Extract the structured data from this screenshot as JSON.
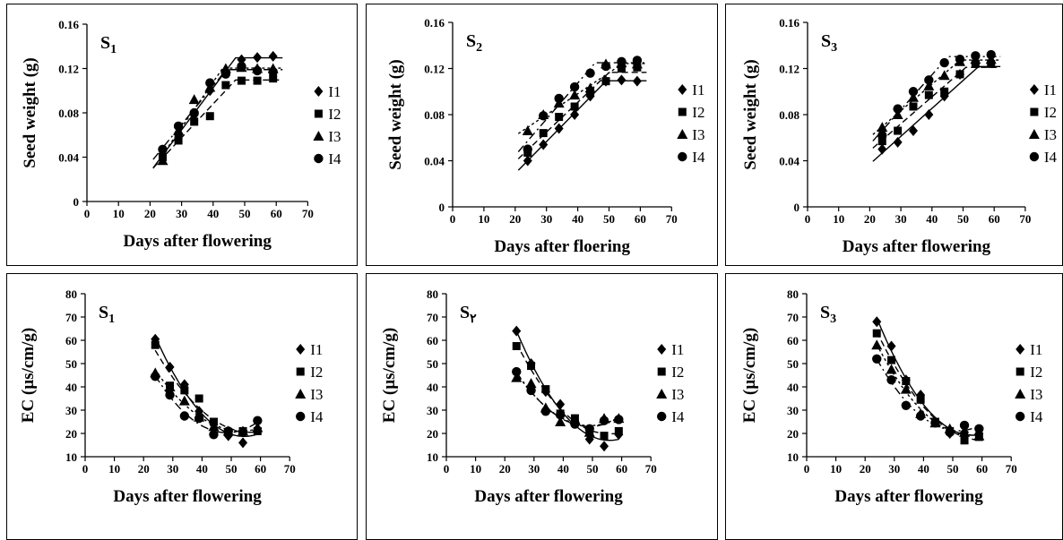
{
  "legend_labels": [
    "I1",
    "I2",
    "I3",
    "I4"
  ],
  "chart_data": [
    {
      "type": "scatter",
      "panel_label": {
        "main": "S",
        "sub": "1"
      },
      "xlabel": "Days after flowering",
      "ylabel": "Seed weight (g)",
      "xlim": [
        0,
        70
      ],
      "ylim": [
        0,
        0.16
      ],
      "xticks": [
        "0",
        "10",
        "20",
        "30",
        "40",
        "50",
        "60",
        "70"
      ],
      "yticks": [
        "0",
        "0.04",
        "0.08",
        "0.12",
        "0.16"
      ],
      "x": [
        24,
        29,
        34,
        39,
        44,
        49,
        54,
        59
      ],
      "series": [
        {
          "name": "I1",
          "marker": "diamond",
          "values": [
            0.043,
            0.06,
            0.078,
            0.1,
            0.118,
            0.128,
            0.13,
            0.131
          ]
        },
        {
          "name": "I2",
          "marker": "square",
          "values": [
            0.04,
            0.055,
            0.072,
            0.077,
            0.105,
            0.109,
            0.109,
            0.111
          ]
        },
        {
          "name": "I3",
          "marker": "triangle",
          "values": [
            0.037,
            0.064,
            0.092,
            0.103,
            0.12,
            0.121,
            0.12,
            0.12
          ]
        },
        {
          "name": "I4",
          "marker": "circle",
          "values": [
            0.047,
            0.068,
            0.08,
            0.107,
            0.115,
            0.122,
            0.118,
            0.117
          ]
        }
      ]
    },
    {
      "type": "scatter",
      "panel_label": {
        "main": "S",
        "sub": "2"
      },
      "xlabel": "Days after floering",
      "ylabel": "Seed weight (g)",
      "xlim": [
        0,
        70
      ],
      "ylim": [
        0,
        0.16
      ],
      "xticks": [
        "0",
        "10",
        "20",
        "30",
        "40",
        "50",
        "60",
        "70"
      ],
      "yticks": [
        "0",
        "0.04",
        "0.08",
        "0.12",
        "0.16"
      ],
      "x": [
        24,
        29,
        34,
        39,
        44,
        49,
        54,
        59
      ],
      "series": [
        {
          "name": "I1",
          "marker": "diamond",
          "values": [
            0.04,
            0.054,
            0.068,
            0.08,
            0.096,
            0.109,
            0.11,
            0.109
          ]
        },
        {
          "name": "I2",
          "marker": "square",
          "values": [
            0.047,
            0.064,
            0.078,
            0.087,
            0.1,
            0.109,
            0.12,
            0.121
          ]
        },
        {
          "name": "I3",
          "marker": "triangle",
          "values": [
            0.066,
            0.08,
            0.09,
            0.097,
            0.103,
            0.124,
            0.125,
            0.124
          ]
        },
        {
          "name": "I4",
          "marker": "circle",
          "values": [
            0.05,
            0.079,
            0.094,
            0.104,
            0.116,
            0.122,
            0.126,
            0.127
          ]
        }
      ]
    },
    {
      "type": "scatter",
      "panel_label": {
        "main": "S",
        "sub": "3"
      },
      "xlabel": "Days after flowering",
      "ylabel": "Seed weight (g)",
      "xlim": [
        0,
        70
      ],
      "ylim": [
        0,
        0.16
      ],
      "xticks": [
        "0",
        "10",
        "20",
        "30",
        "40",
        "50",
        "60",
        "70"
      ],
      "yticks": [
        "0",
        "0.04",
        "0.08",
        "0.12",
        "0.16"
      ],
      "x": [
        24,
        29,
        34,
        39,
        44,
        49,
        54,
        59
      ],
      "series": [
        {
          "name": "I1",
          "marker": "diamond",
          "values": [
            0.05,
            0.056,
            0.066,
            0.08,
            0.096,
            0.115,
            0.125,
            0.125
          ]
        },
        {
          "name": "I2",
          "marker": "square",
          "values": [
            0.057,
            0.066,
            0.087,
            0.097,
            0.1,
            0.115,
            0.124,
            0.124
          ]
        },
        {
          "name": "I3",
          "marker": "triangle",
          "values": [
            0.069,
            0.08,
            0.095,
            0.105,
            0.114,
            0.126,
            0.128,
            0.128
          ]
        },
        {
          "name": "I4",
          "marker": "circle",
          "values": [
            0.062,
            0.085,
            0.1,
            0.11,
            0.125,
            0.128,
            0.131,
            0.132
          ]
        }
      ]
    },
    {
      "type": "scatter",
      "panel_label": {
        "main": "S",
        "sub": "1"
      },
      "xlabel": "Days after flowering",
      "ylabel": "EC (µs/cm/g)",
      "xlim": [
        0,
        70
      ],
      "ylim": [
        10,
        80
      ],
      "xticks": [
        "0",
        "10",
        "20",
        "30",
        "40",
        "50",
        "60",
        "70"
      ],
      "yticks": [
        "10",
        "20",
        "30",
        "40",
        "50",
        "60",
        "70",
        "80"
      ],
      "x": [
        24,
        29,
        34,
        39,
        44,
        49,
        54,
        59
      ],
      "series": [
        {
          "name": "I1",
          "marker": "diamond",
          "values": [
            60.5,
            48.5,
            41.0,
            29.5,
            24.0,
            19.0,
            16.0,
            22.0
          ]
        },
        {
          "name": "I2",
          "marker": "square",
          "values": [
            58.0,
            40.5,
            38.5,
            35.0,
            25.0,
            20.5,
            21.0,
            21.0
          ]
        },
        {
          "name": "I3",
          "marker": "triangle",
          "values": [
            46.0,
            40.0,
            34.0,
            27.0,
            23.0,
            21.0,
            21.0,
            22.5
          ]
        },
        {
          "name": "I4",
          "marker": "circle",
          "values": [
            44.5,
            36.5,
            27.5,
            26.5,
            19.5,
            21.0,
            20.5,
            25.5
          ]
        }
      ]
    },
    {
      "type": "scatter",
      "panel_label": {
        "main": "S",
        "sub": "۲"
      },
      "xlabel": "Days after flowering",
      "ylabel": "EC (µs/cm/g)",
      "xlim": [
        0,
        70
      ],
      "ylim": [
        10,
        80
      ],
      "xticks": [
        "0",
        "10",
        "20",
        "30",
        "40",
        "50",
        "60",
        "70"
      ],
      "yticks": [
        "10",
        "20",
        "30",
        "40",
        "50",
        "60",
        "70",
        "80"
      ],
      "x": [
        24,
        29,
        34,
        39,
        44,
        49,
        54,
        59
      ],
      "series": [
        {
          "name": "I1",
          "marker": "diamond",
          "values": [
            64.0,
            50.0,
            38.0,
            32.5,
            25.0,
            17.5,
            14.5,
            19.5
          ]
        },
        {
          "name": "I2",
          "marker": "square",
          "values": [
            57.5,
            49.0,
            39.0,
            28.5,
            26.5,
            21.0,
            19.0,
            21.0
          ]
        },
        {
          "name": "I3",
          "marker": "triangle",
          "values": [
            44.0,
            41.5,
            31.0,
            25.0,
            26.0,
            20.5,
            26.5,
            26.5
          ]
        },
        {
          "name": "I4",
          "marker": "circle",
          "values": [
            46.5,
            38.5,
            29.5,
            28.0,
            24.0,
            22.0,
            25.5,
            26.0
          ]
        }
      ]
    },
    {
      "type": "scatter",
      "panel_label": {
        "main": "S",
        "sub": "3"
      },
      "xlabel": "Days after flowering",
      "ylabel": "EC (µs/cm/g)",
      "xlim": [
        0,
        70
      ],
      "ylim": [
        10,
        80
      ],
      "xticks": [
        "0",
        "10",
        "20",
        "30",
        "40",
        "50",
        "60",
        "70"
      ],
      "yticks": [
        "10",
        "20",
        "30",
        "40",
        "50",
        "60",
        "70",
        "80"
      ],
      "x": [
        24,
        29,
        34,
        39,
        44,
        49,
        54,
        59
      ],
      "series": [
        {
          "name": "I1",
          "marker": "diamond",
          "values": [
            68.0,
            57.5,
            43.0,
            36.5,
            25.0,
            20.0,
            20.5,
            20.0
          ]
        },
        {
          "name": "I2",
          "marker": "square",
          "values": [
            63.0,
            51.5,
            42.5,
            34.5,
            25.0,
            21.0,
            17.0,
            18.5
          ]
        },
        {
          "name": "I3",
          "marker": "triangle",
          "values": [
            58.0,
            47.5,
            39.0,
            28.5,
            24.5,
            22.0,
            20.5,
            19.0
          ]
        },
        {
          "name": "I4",
          "marker": "circle",
          "values": [
            52.0,
            43.0,
            32.0,
            27.5,
            24.5,
            20.5,
            23.5,
            22.0
          ]
        }
      ]
    }
  ]
}
